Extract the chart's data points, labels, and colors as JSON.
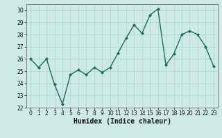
{
  "x": [
    0,
    1,
    2,
    3,
    4,
    5,
    6,
    7,
    8,
    9,
    10,
    11,
    12,
    13,
    14,
    15,
    16,
    17,
    18,
    19,
    20,
    21,
    22,
    23
  ],
  "y": [
    26.0,
    25.3,
    26.0,
    23.9,
    22.3,
    24.7,
    25.1,
    24.7,
    25.3,
    24.9,
    25.3,
    26.5,
    27.7,
    28.8,
    28.1,
    29.6,
    30.1,
    25.5,
    26.4,
    28.0,
    28.3,
    28.0,
    27.0,
    25.4
  ],
  "line_color": "#1a6b5e",
  "marker": "D",
  "marker_size": 2.0,
  "background_color": "#ceeae7",
  "grid_color": "#a8d5d1",
  "xlabel": "Humidex (Indice chaleur)",
  "ylim": [
    22,
    30.5
  ],
  "xlim": [
    -0.5,
    23.5
  ],
  "yticks": [
    22,
    23,
    24,
    25,
    26,
    27,
    28,
    29,
    30
  ],
  "xticks": [
    0,
    1,
    2,
    3,
    4,
    5,
    6,
    7,
    8,
    9,
    10,
    11,
    12,
    13,
    14,
    15,
    16,
    17,
    18,
    19,
    20,
    21,
    22,
    23
  ],
  "tick_fontsize": 5.5,
  "xlabel_fontsize": 7.0,
  "line_width": 1.0
}
